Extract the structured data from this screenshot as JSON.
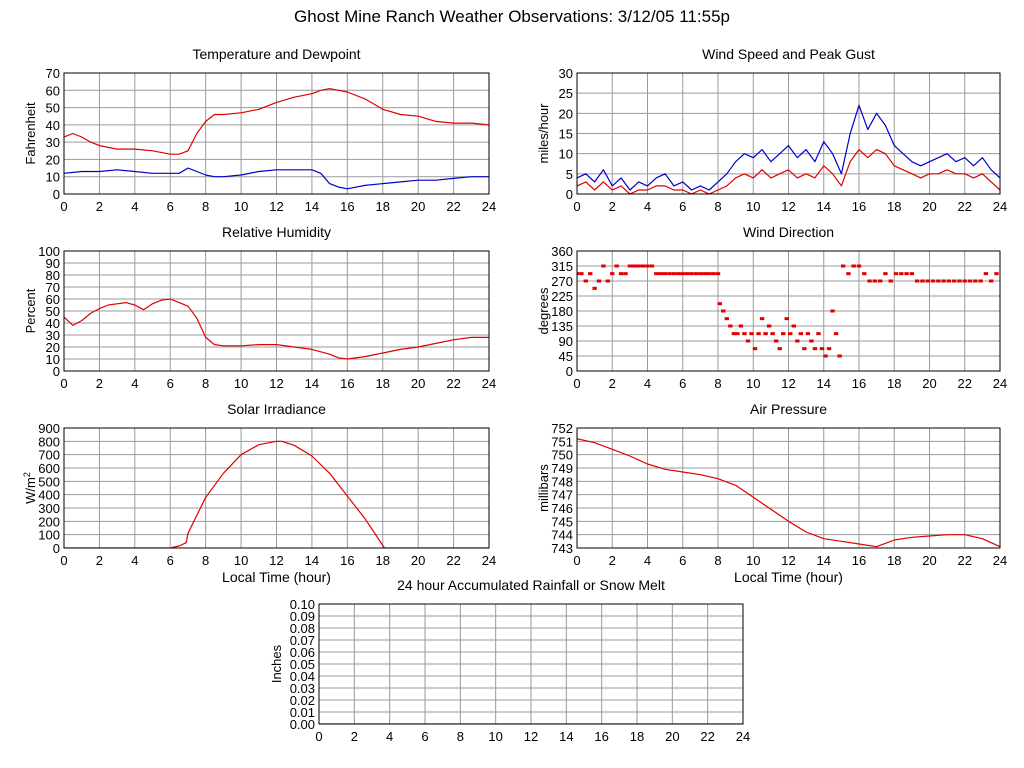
{
  "page": {
    "title": "Ghost Mine Ranch Weather Observations: 3/12/05 11:55p"
  },
  "colors": {
    "temperature": "#e00000",
    "dewpoint": "#0000c8",
    "gust": "#0000c8",
    "speed": "#e00000",
    "red": "#e00000",
    "grid": "#9a9a9a"
  },
  "chart_data": [
    {
      "id": "temp",
      "type": "line",
      "title": "Temperature and Dewpoint",
      "ylabel": "Fahrenheit",
      "xlabel": "",
      "xlim": [
        0,
        24
      ],
      "ylim": [
        0,
        70
      ],
      "xticks": [
        0,
        2,
        4,
        6,
        8,
        10,
        12,
        14,
        16,
        18,
        20,
        22,
        24
      ],
      "yticks": [
        0,
        10,
        20,
        30,
        40,
        50,
        60,
        70
      ],
      "yticklabels": [
        "0",
        "10",
        "20",
        "30",
        "40",
        "50",
        "60",
        "70"
      ],
      "grid": true,
      "series": [
        {
          "key": "temperature",
          "x": [
            0,
            0.5,
            1,
            1.5,
            2,
            3,
            4,
            5,
            6,
            6.5,
            7,
            7.5,
            8,
            8.5,
            9,
            10,
            11,
            12,
            13,
            14,
            14.5,
            15,
            15.5,
            16,
            17,
            18,
            19,
            20,
            21,
            22,
            23,
            24
          ],
          "y": [
            33,
            35,
            33,
            30,
            28,
            26,
            26,
            25,
            23,
            23,
            25,
            35,
            42,
            46,
            46,
            47,
            49,
            53,
            56,
            58,
            60,
            61,
            60,
            59,
            55,
            49,
            46,
            45,
            42,
            41,
            41,
            40
          ]
        },
        {
          "key": "dewpoint",
          "x": [
            0,
            1,
            2,
            3,
            4,
            5,
            6,
            6.5,
            7,
            7.5,
            8,
            8.5,
            9,
            10,
            11,
            12,
            13,
            14,
            14.5,
            15,
            15.5,
            16,
            17,
            18,
            19,
            20,
            21,
            22,
            23,
            24
          ],
          "y": [
            12,
            13,
            13,
            14,
            13,
            12,
            12,
            12,
            15,
            13,
            11,
            10,
            10,
            11,
            13,
            14,
            14,
            14,
            12,
            6,
            4,
            3,
            5,
            6,
            7,
            8,
            8,
            9,
            10,
            10
          ]
        }
      ]
    },
    {
      "id": "wind",
      "type": "line",
      "title": "Wind Speed and Peak Gust",
      "ylabel": "miles/hour",
      "xlabel": "",
      "xlim": [
        0,
        24
      ],
      "ylim": [
        0,
        30
      ],
      "xticks": [
        0,
        2,
        4,
        6,
        8,
        10,
        12,
        14,
        16,
        18,
        20,
        22,
        24
      ],
      "yticks": [
        0,
        5,
        10,
        15,
        20,
        25,
        30
      ],
      "yticklabels": [
        "0",
        "5",
        "10",
        "15",
        "20",
        "25",
        "30"
      ],
      "grid": true,
      "series": [
        {
          "key": "gust",
          "x": [
            0,
            0.5,
            1,
            1.5,
            2,
            2.5,
            3,
            3.5,
            4,
            4.5,
            5,
            5.5,
            6,
            6.5,
            7,
            7.5,
            8,
            8.5,
            9,
            9.5,
            10,
            10.5,
            11,
            11.5,
            12,
            12.5,
            13,
            13.5,
            14,
            14.5,
            15,
            15.5,
            16,
            16.5,
            17,
            17.5,
            18,
            18.5,
            19,
            19.5,
            20,
            20.5,
            21,
            21.5,
            22,
            22.5,
            23,
            23.5,
            24
          ],
          "y": [
            4,
            5,
            3,
            6,
            2,
            4,
            1,
            3,
            2,
            4,
            5,
            2,
            3,
            1,
            2,
            1,
            3,
            5,
            8,
            10,
            9,
            11,
            8,
            10,
            12,
            9,
            11,
            8,
            13,
            10,
            5,
            15,
            22,
            16,
            20,
            17,
            12,
            10,
            8,
            7,
            8,
            9,
            10,
            8,
            9,
            7,
            9,
            6,
            4
          ]
        },
        {
          "key": "speed",
          "x": [
            0,
            0.5,
            1,
            1.5,
            2,
            2.5,
            3,
            3.5,
            4,
            4.5,
            5,
            5.5,
            6,
            6.5,
            7,
            7.5,
            8,
            8.5,
            9,
            9.5,
            10,
            10.5,
            11,
            11.5,
            12,
            12.5,
            13,
            13.5,
            14,
            14.5,
            15,
            15.5,
            16,
            16.5,
            17,
            17.5,
            18,
            18.5,
            19,
            19.5,
            20,
            20.5,
            21,
            21.5,
            22,
            22.5,
            23,
            23.5,
            24
          ],
          "y": [
            2,
            3,
            1,
            3,
            1,
            2,
            0,
            1,
            1,
            2,
            2,
            1,
            1,
            0,
            1,
            0,
            1,
            2,
            4,
            5,
            4,
            6,
            4,
            5,
            6,
            4,
            5,
            4,
            7,
            5,
            2,
            8,
            11,
            9,
            11,
            10,
            7,
            6,
            5,
            4,
            5,
            5,
            6,
            5,
            5,
            4,
            5,
            3,
            1
          ]
        }
      ]
    },
    {
      "id": "rh",
      "type": "line",
      "title": "Relative Humidity",
      "ylabel": "Percent",
      "xlabel": "",
      "xlim": [
        0,
        24
      ],
      "ylim": [
        0,
        100
      ],
      "xticks": [
        0,
        2,
        4,
        6,
        8,
        10,
        12,
        14,
        16,
        18,
        20,
        22,
        24
      ],
      "yticks": [
        0,
        10,
        20,
        30,
        40,
        50,
        60,
        70,
        80,
        90,
        100
      ],
      "yticklabels": [
        "0",
        "10",
        "20",
        "30",
        "40",
        "50",
        "60",
        "70",
        "80",
        "90",
        "100"
      ],
      "grid": true,
      "series": [
        {
          "key": "red",
          "x": [
            0,
            0.5,
            1,
            1.5,
            2,
            2.5,
            3,
            3.5,
            4,
            4.5,
            5,
            5.5,
            6,
            6.5,
            7,
            7.5,
            8,
            8.5,
            9,
            10,
            11,
            12,
            13,
            14,
            15,
            15.5,
            16,
            17,
            18,
            19,
            20,
            21,
            22,
            23,
            24
          ],
          "y": [
            45,
            38,
            42,
            48,
            52,
            55,
            56,
            57,
            55,
            51,
            56,
            59,
            60,
            57,
            54,
            44,
            28,
            22,
            21,
            21,
            22,
            22,
            20,
            18,
            14,
            11,
            10,
            12,
            15,
            18,
            20,
            23,
            26,
            28,
            28
          ]
        }
      ]
    },
    {
      "id": "dir",
      "type": "scatter",
      "title": "Wind Direction",
      "ylabel": "degrees",
      "xlabel": "",
      "xlim": [
        0,
        24
      ],
      "ylim": [
        0,
        360
      ],
      "xticks": [
        0,
        2,
        4,
        6,
        8,
        10,
        12,
        14,
        16,
        18,
        20,
        22,
        24
      ],
      "yticks": [
        0,
        45,
        90,
        135,
        180,
        225,
        270,
        315,
        360
      ],
      "yticklabels": [
        "0",
        "45",
        "90",
        "135",
        "180",
        "225",
        "270",
        "315",
        "360"
      ],
      "grid": true,
      "series": [
        {
          "key": "red",
          "x": [
            0,
            0.25,
            0.5,
            0.75,
            1,
            1.25,
            1.5,
            1.75,
            2,
            2.25,
            2.5,
            2.75,
            3,
            3.25,
            3.5,
            3.75,
            4,
            4.25,
            4.5,
            4.75,
            5,
            5.25,
            5.5,
            5.75,
            6,
            6.25,
            6.5,
            6.75,
            7,
            7.25,
            7.5,
            7.75,
            8,
            8.1,
            8.3,
            8.5,
            8.7,
            8.9,
            9.1,
            9.3,
            9.5,
            9.7,
            9.9,
            10.1,
            10.3,
            10.5,
            10.7,
            10.9,
            11.1,
            11.3,
            11.5,
            11.7,
            11.9,
            12.1,
            12.3,
            12.5,
            12.7,
            12.9,
            13.1,
            13.3,
            13.5,
            13.7,
            13.9,
            14.1,
            14.3,
            14.5,
            14.7,
            14.9,
            15.1,
            15.4,
            15.7,
            16,
            16.3,
            16.6,
            16.9,
            17.2,
            17.5,
            17.8,
            18.1,
            18.4,
            18.7,
            19,
            19.3,
            19.6,
            19.9,
            20.2,
            20.5,
            20.8,
            21.1,
            21.4,
            21.7,
            22,
            22.3,
            22.6,
            22.9,
            23.2,
            23.5,
            23.8
          ],
          "y": [
            292,
            292,
            270,
            292,
            248,
            270,
            315,
            270,
            292,
            315,
            292,
            292,
            315,
            315,
            315,
            315,
            315,
            315,
            292,
            292,
            292,
            292,
            292,
            292,
            292,
            292,
            292,
            292,
            292,
            292,
            292,
            292,
            292,
            202,
            180,
            157,
            135,
            112,
            112,
            135,
            112,
            90,
            112,
            67,
            112,
            157,
            112,
            135,
            112,
            90,
            67,
            112,
            157,
            112,
            135,
            90,
            112,
            67,
            112,
            90,
            67,
            112,
            67,
            45,
            67,
            180,
            112,
            45,
            315,
            292,
            315,
            315,
            292,
            270,
            270,
            270,
            292,
            270,
            292,
            292,
            292,
            292,
            270,
            270,
            270,
            270,
            270,
            270,
            270,
            270,
            270,
            270,
            270,
            270,
            270,
            292,
            270,
            292
          ]
        }
      ]
    },
    {
      "id": "solar",
      "type": "line",
      "title": "Solar Irradiance",
      "ylabel": "W/m",
      "ylabel_sup": "2",
      "xlabel": "Local Time (hour)",
      "xlim": [
        0,
        24
      ],
      "ylim": [
        0,
        900
      ],
      "xticks": [
        0,
        2,
        4,
        6,
        8,
        10,
        12,
        14,
        16,
        18,
        20,
        22,
        24
      ],
      "yticks": [
        0,
        100,
        200,
        300,
        400,
        500,
        600,
        700,
        800,
        900
      ],
      "yticklabels": [
        "0",
        "100",
        "200",
        "300",
        "400",
        "500",
        "600",
        "700",
        "800",
        "900"
      ],
      "grid": true,
      "series": [
        {
          "key": "red",
          "x": [
            0,
            6,
            6.5,
            6.9,
            7,
            8,
            9,
            10,
            11,
            12,
            12.3,
            13,
            14,
            15,
            16,
            17,
            17.8,
            18.1,
            24
          ],
          "y": [
            0,
            0,
            15,
            40,
            110,
            380,
            560,
            700,
            775,
            800,
            800,
            770,
            690,
            560,
            390,
            220,
            60,
            0,
            0
          ]
        }
      ]
    },
    {
      "id": "pressure",
      "type": "line",
      "title": "Air Pressure",
      "ylabel": "millibars",
      "xlabel": "Local Time (hour)",
      "xlim": [
        0,
        24
      ],
      "ylim": [
        743,
        752
      ],
      "xticks": [
        0,
        2,
        4,
        6,
        8,
        10,
        12,
        14,
        16,
        18,
        20,
        22,
        24
      ],
      "yticks": [
        743,
        744,
        745,
        746,
        747,
        748,
        749,
        750,
        751,
        752
      ],
      "yticklabels": [
        "743",
        "744",
        "745",
        "746",
        "747",
        "748",
        "749",
        "750",
        "751",
        "752"
      ],
      "grid": true,
      "series": [
        {
          "key": "red",
          "x": [
            0,
            1,
            2,
            3,
            4,
            5,
            6,
            7,
            8,
            9,
            10,
            11,
            12,
            13,
            14,
            15,
            16,
            17,
            18,
            19,
            20,
            21,
            22,
            23,
            24
          ],
          "y": [
            751.2,
            750.9,
            750.4,
            749.9,
            749.3,
            748.9,
            748.7,
            748.5,
            748.2,
            747.7,
            746.8,
            745.9,
            745.0,
            744.2,
            743.7,
            743.5,
            743.3,
            743.1,
            743.6,
            743.8,
            743.9,
            744.0,
            744.0,
            743.7,
            743.1
          ]
        }
      ]
    },
    {
      "id": "rain",
      "type": "line",
      "title": "24 hour Accumulated Rainfall or Snow Melt",
      "ylabel": "Inches",
      "xlabel": "",
      "xlim": [
        0,
        24
      ],
      "ylim": [
        0,
        0.1
      ],
      "xticks": [
        0,
        2,
        4,
        6,
        8,
        10,
        12,
        14,
        16,
        18,
        20,
        22,
        24
      ],
      "yticks": [
        0,
        0.01,
        0.02,
        0.03,
        0.04,
        0.05,
        0.06,
        0.07,
        0.08,
        0.09,
        0.1
      ],
      "yticklabels": [
        "0.00",
        "0.01",
        "0.02",
        "0.03",
        "0.04",
        "0.05",
        "0.06",
        "0.07",
        "0.08",
        "0.09",
        "0.10"
      ],
      "grid": true,
      "series": [
        {
          "key": "red",
          "x": [
            0,
            24
          ],
          "y": [
            0,
            0
          ]
        }
      ]
    }
  ]
}
